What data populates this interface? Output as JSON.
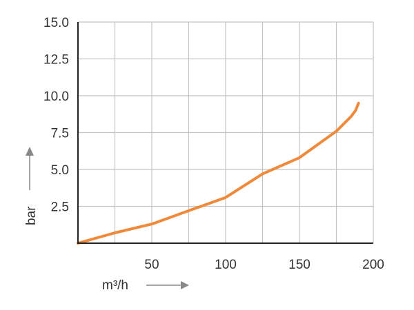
{
  "chart_data": {
    "type": "line",
    "title": "",
    "xlabel": "m³/h",
    "ylabel": "bar",
    "xlim": [
      0,
      200
    ],
    "ylim": [
      0,
      15
    ],
    "grid": true,
    "x_ticks": [
      "50",
      "100",
      "150",
      "200"
    ],
    "y_ticks": [
      "2.5",
      "5.0",
      "7.5",
      "10.0",
      "12.5",
      "15.0"
    ],
    "x_tick_values": [
      50,
      100,
      150,
      200
    ],
    "y_tick_values": [
      2.5,
      5.0,
      7.5,
      10.0,
      12.5,
      15.0
    ],
    "series": [
      {
        "color": "#f0893a",
        "x": [
          0,
          25,
          50,
          75,
          100,
          125,
          150,
          175,
          185,
          188,
          190
        ],
        "y": [
          0,
          0.7,
          1.3,
          2.2,
          3.1,
          4.7,
          5.8,
          7.6,
          8.6,
          9.0,
          9.5
        ]
      }
    ],
    "grid_color": "#c4c4c4",
    "axis_color": "#222222"
  }
}
